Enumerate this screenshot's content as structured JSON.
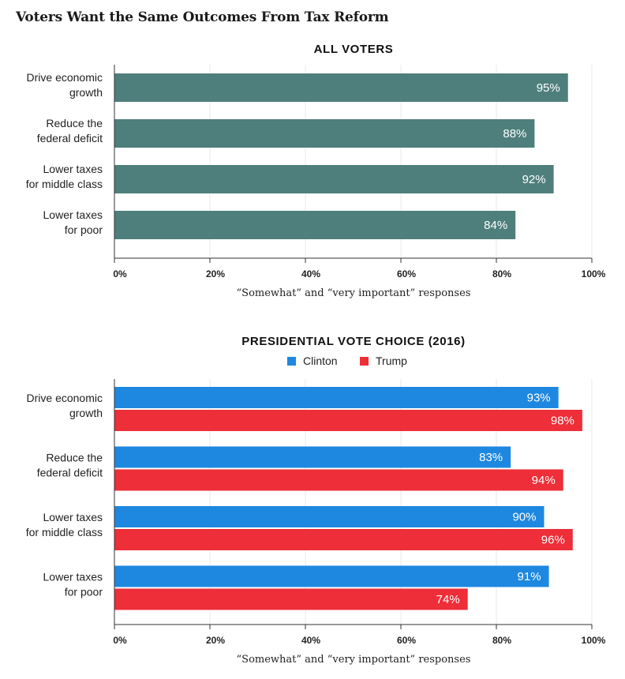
{
  "page_title": "Voters Want the Same Outcomes From Tax Reform",
  "chart_data": [
    {
      "type": "bar",
      "orientation": "horizontal",
      "title": "ALL VOTERS",
      "categories": [
        [
          "Drive economic",
          "growth"
        ],
        [
          "Reduce the",
          "federal deficit"
        ],
        [
          "Lower taxes",
          "for middle class"
        ],
        [
          "Lower taxes",
          "for poor"
        ]
      ],
      "series": [
        {
          "values": [
            95,
            88,
            92,
            84
          ],
          "color": "#4e7f7c"
        }
      ],
      "xlim": [
        0,
        100
      ],
      "xticks": [
        "0%",
        "20%",
        "40%",
        "60%",
        "80%",
        "100%"
      ],
      "xlabel": "“Somewhat” and “very important” responses",
      "value_suffix": "%",
      "grid": true
    },
    {
      "type": "bar",
      "orientation": "horizontal",
      "title": "PRESIDENTIAL VOTE CHOICE (2016)",
      "legend_position": "top-center",
      "categories": [
        [
          "Drive economic",
          "growth"
        ],
        [
          "Reduce the",
          "federal deficit"
        ],
        [
          "Lower taxes",
          "for middle class"
        ],
        [
          "Lower taxes",
          "for poor"
        ]
      ],
      "series": [
        {
          "name": "Clinton",
          "values": [
            93,
            83,
            90,
            91
          ],
          "color": "#1e88e0"
        },
        {
          "name": "Trump",
          "values": [
            98,
            94,
            96,
            74
          ],
          "color": "#ee2e38"
        }
      ],
      "xlim": [
        0,
        100
      ],
      "xticks": [
        "0%",
        "20%",
        "40%",
        "60%",
        "80%",
        "100%"
      ],
      "xlabel": "“Somewhat” and “very important” responses",
      "value_suffix": "%",
      "grid": true
    }
  ]
}
